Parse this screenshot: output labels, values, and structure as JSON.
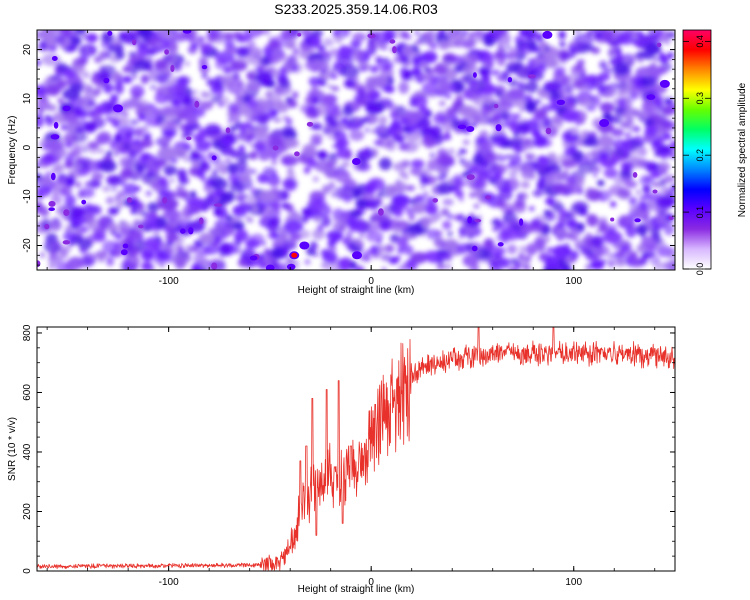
{
  "title": "S233.2025.359.14.06.R03",
  "chart_data": [
    {
      "type": "heatmap",
      "xlabel": "Height of straight line (km)",
      "ylabel": "Frequency (Hz)",
      "xlim": [
        -165,
        150
      ],
      "ylim": [
        -25,
        24
      ],
      "xticks": [
        -100,
        0,
        100
      ],
      "yticks": [
        -20,
        -10,
        0,
        10,
        20
      ],
      "colorbar": {
        "label": "Normalized spectral amplitude",
        "range": [
          0,
          0.42
        ],
        "ticks": [
          "0.0",
          "0.1",
          "0.2",
          "0.3",
          "0.4"
        ],
        "colors": [
          "#ffffff",
          "#d8b8ff",
          "#8a2be2",
          "#5a00ff",
          "#0000ff",
          "#0088ff",
          "#00ffff",
          "#00ff66",
          "#66ff00",
          "#ffff00",
          "#ff8800",
          "#ff0000",
          "#ff0066"
        ]
      },
      "notable_features": [
        {
          "x": -38,
          "y": -22,
          "value": 0.4
        },
        {
          "x": -33,
          "y": -20,
          "value": 0.12
        },
        {
          "x": -7,
          "y": -22,
          "value": 0.12
        },
        {
          "x": 87,
          "y": 23,
          "value": 0.12
        },
        {
          "x": 115,
          "y": 5,
          "value": 0.1
        },
        {
          "x": -125,
          "y": 8,
          "value": 0.1
        },
        {
          "x": 145,
          "y": 13,
          "value": 0.1
        }
      ],
      "gap_x": [
        -36,
        -34
      ],
      "grid": false
    },
    {
      "type": "line",
      "xlabel": "Height of straight line (km)",
      "ylabel": "SNR (10 * v/v)",
      "xlim": [
        -165,
        150
      ],
      "ylim": [
        0,
        820
      ],
      "xticks": [
        -100,
        0,
        100
      ],
      "yticks": [
        0,
        200,
        400,
        600,
        800
      ],
      "color": "#e8312a",
      "grid": false,
      "envelope": {
        "x": [
          -165,
          -55,
          -45,
          -40,
          -35,
          -30,
          -25,
          -20,
          -15,
          -10,
          -5,
          0,
          5,
          10,
          15,
          20,
          25,
          30,
          40,
          60,
          80,
          100,
          120,
          150
        ],
        "y": [
          15,
          20,
          30,
          80,
          200,
          260,
          300,
          320,
          300,
          330,
          380,
          440,
          500,
          560,
          610,
          650,
          680,
          700,
          715,
          725,
          730,
          730,
          728,
          725
        ]
      },
      "spikes": [
        {
          "x": -35,
          "y": 370
        },
        {
          "x": -32,
          "y": 420
        },
        {
          "x": -29,
          "y": 580
        },
        {
          "x": -27,
          "y": 120
        },
        {
          "x": -22,
          "y": 610
        },
        {
          "x": -18,
          "y": 350
        },
        {
          "x": -16,
          "y": 640
        },
        {
          "x": -14,
          "y": 160
        },
        {
          "x": -10,
          "y": 420
        },
        {
          "x": 2,
          "y": 560
        },
        {
          "x": 53,
          "y": 820
        },
        {
          "x": 90,
          "y": 820
        }
      ]
    }
  ]
}
